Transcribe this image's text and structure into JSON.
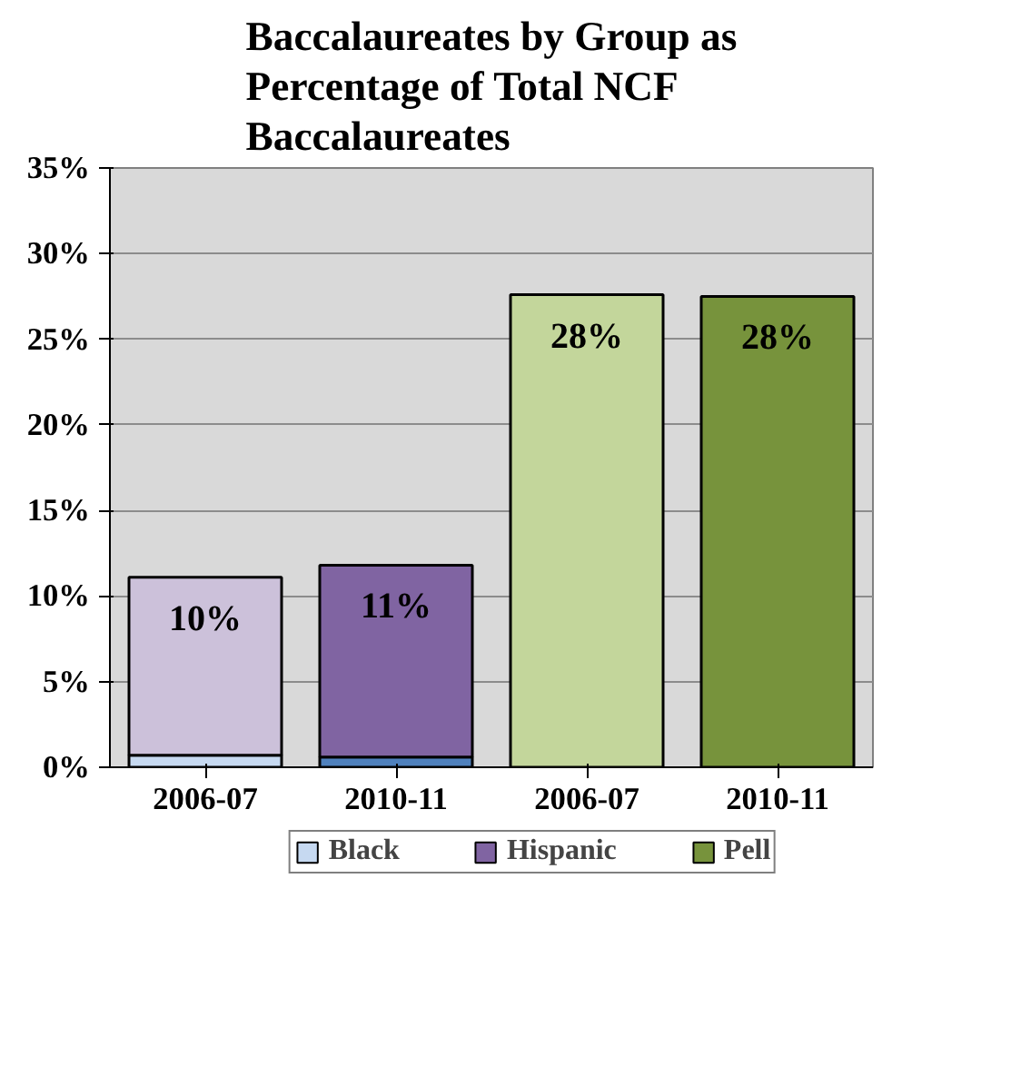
{
  "chart_data": {
    "type": "bar",
    "title": "Baccalaureates by Group as Percentage of Total NCF Baccalaureates",
    "categories": [
      "2006-07",
      "2010-11",
      "2006-07",
      "2010-11"
    ],
    "stacked": true,
    "ylim": [
      0,
      35
    ],
    "yticks": [
      {
        "value": 0,
        "label": "0%"
      },
      {
        "value": 5,
        "label": "5%"
      },
      {
        "value": 10,
        "label": "10%"
      },
      {
        "value": 15,
        "label": "15%"
      },
      {
        "value": 20,
        "label": "20%"
      },
      {
        "value": 25,
        "label": "25%"
      },
      {
        "value": 30,
        "label": "30%"
      },
      {
        "value": 35,
        "label": "35%"
      }
    ],
    "grid": "y",
    "legend": "bottom",
    "series": [
      {
        "name": "Black",
        "color": "#c6d9f1",
        "colors": [
          "#c6d9f1",
          "#4f81bd",
          null,
          null
        ],
        "values": [
          0.7,
          0.6,
          null,
          null
        ]
      },
      {
        "name": "Hispanic",
        "color": "#8064a2",
        "colors": [
          "#ccc1da",
          "#8064a2",
          null,
          null
        ],
        "values": [
          10.4,
          11.2,
          null,
          null
        ],
        "value_labels": [
          "10%",
          "11%",
          null,
          null
        ]
      },
      {
        "name": "Pell",
        "color": "#77933c",
        "colors": [
          null,
          null,
          "#c3d69b",
          "#77933c"
        ],
        "values": [
          null,
          null,
          27.6,
          27.5
        ],
        "value_labels": [
          null,
          null,
          "28%",
          "28%"
        ]
      }
    ]
  }
}
